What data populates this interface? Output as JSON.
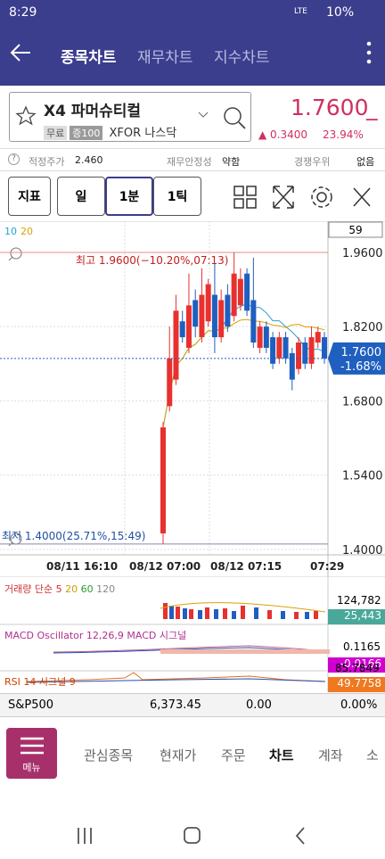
{
  "status_bar": {
    "time": "8:29",
    "network": "LTE",
    "battery": "10%"
  },
  "header": {
    "tabs": [
      "종목차트",
      "재무차트",
      "지수차트"
    ]
  },
  "stock": {
    "name": "X4 파머슈티컬",
    "tags": [
      "무료",
      "증100"
    ],
    "ticker": "XFOR",
    "exchange": "나스닥",
    "price": "1.7600",
    "change": "▲ 0.3400",
    "change_pct": "23.94%"
  },
  "info": {
    "fair_price_label": "적정주가",
    "fair_price": "2.460",
    "stability_label": "재무안정성",
    "stability": "약함",
    "advantage_label": "경쟁우위",
    "advantage": "없음"
  },
  "toolbar": [
    "지표",
    "일",
    "1분",
    "1틱"
  ],
  "chart_data": {
    "type": "candlestick",
    "legend": [
      "10",
      "20"
    ],
    "count_box": "59",
    "high_label": "최고 1.9600(−10.20%,07:13)",
    "low_label": "최저 1.4000(25.71%,15:49)",
    "ylim": [
      1.393,
      2.007
    ],
    "yticks": [
      {
        "value": 1.96,
        "label": "1.9600"
      },
      {
        "value": 1.82,
        "label": "1.8200"
      },
      {
        "value": 1.68,
        "label": "1.6800"
      },
      {
        "value": 1.54,
        "label": "1.5400"
      },
      {
        "value": 1.4,
        "label": "1.4000"
      }
    ],
    "xlabels": [
      "08/11 16:10",
      "08/12 07:00",
      "08/12 07:15",
      "07:29"
    ],
    "last_price": {
      "value": 1.76,
      "label": "1.7600"
    },
    "last_change": "-1.68%",
    "colors": {
      "up": "#e8312f",
      "down": "#1f5fbf"
    },
    "candles": [
      {
        "open": 1.43,
        "high": 1.64,
        "low": 1.41,
        "close": 1.63
      },
      {
        "open": 1.67,
        "high": 1.82,
        "low": 1.66,
        "close": 1.76
      },
      {
        "open": 1.72,
        "high": 1.88,
        "low": 1.71,
        "close": 1.85
      },
      {
        "open": 1.83,
        "high": 1.85,
        "low": 1.79,
        "close": 1.8
      },
      {
        "open": 1.78,
        "high": 1.92,
        "low": 1.77,
        "close": 1.86
      },
      {
        "open": 1.87,
        "high": 1.89,
        "low": 1.8,
        "close": 1.82
      },
      {
        "open": 1.8,
        "high": 1.93,
        "low": 1.79,
        "close": 1.88
      },
      {
        "open": 1.83,
        "high": 1.91,
        "low": 1.82,
        "close": 1.9
      },
      {
        "open": 1.88,
        "high": 1.94,
        "low": 1.77,
        "close": 1.8
      },
      {
        "open": 1.8,
        "high": 1.89,
        "low": 1.79,
        "close": 1.87
      },
      {
        "open": 1.88,
        "high": 1.9,
        "low": 1.81,
        "close": 1.82
      },
      {
        "open": 1.84,
        "high": 1.96,
        "low": 1.83,
        "close": 1.92
      },
      {
        "open": 1.86,
        "high": 1.93,
        "low": 1.85,
        "close": 1.91
      },
      {
        "open": 1.92,
        "high": 1.93,
        "low": 1.84,
        "close": 1.85
      },
      {
        "open": 1.87,
        "high": 1.95,
        "low": 1.78,
        "close": 1.79
      },
      {
        "open": 1.78,
        "high": 1.83,
        "low": 1.77,
        "close": 1.82
      },
      {
        "open": 1.82,
        "high": 1.83,
        "low": 1.77,
        "close": 1.78
      },
      {
        "open": 1.8,
        "high": 1.81,
        "low": 1.74,
        "close": 1.75
      },
      {
        "open": 1.76,
        "high": 1.81,
        "low": 1.75,
        "close": 1.8
      },
      {
        "open": 1.8,
        "high": 1.81,
        "low": 1.75,
        "close": 1.76
      },
      {
        "open": 1.77,
        "high": 1.78,
        "low": 1.7,
        "close": 1.72
      },
      {
        "open": 1.74,
        "high": 1.8,
        "low": 1.73,
        "close": 1.79
      },
      {
        "open": 1.79,
        "high": 1.8,
        "low": 1.74,
        "close": 1.75
      },
      {
        "open": 1.75,
        "high": 1.82,
        "low": 1.74,
        "close": 1.8
      },
      {
        "open": 1.79,
        "high": 1.82,
        "low": 1.78,
        "close": 1.81
      },
      {
        "open": 1.8,
        "high": 1.81,
        "low": 1.75,
        "close": 1.76
      }
    ]
  },
  "indicators": {
    "volume": {
      "title": "거래량 단순",
      "periods": [
        "5",
        "20",
        "60",
        "120"
      ],
      "max": "124,782",
      "last": "25,443"
    },
    "macd": {
      "title": "MACD Oscillator 12,26,9",
      "sub": "MACD 시그널",
      "max": "0.1165",
      "last": "-0.0166"
    },
    "rsi": {
      "title": "RSI 14 시그널 9",
      "max": "85.7849",
      "last": "49.7758"
    }
  },
  "market": {
    "name": "S&P500",
    "value": "6,373.45",
    "change": "0.00",
    "change_pct": "0.00%"
  },
  "nav": {
    "menu": "메뉴",
    "items": [
      "관심종목",
      "현재가",
      "주문",
      "차트",
      "계좌",
      "소"
    ]
  }
}
